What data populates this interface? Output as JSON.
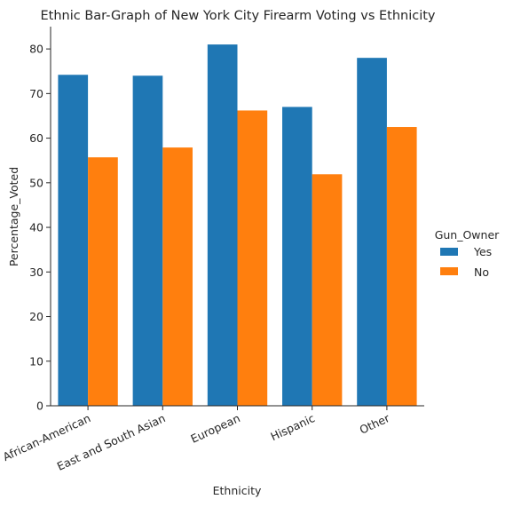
{
  "chart_data": {
    "type": "bar",
    "title": "Ethnic Bar-Graph of New York City Firearm Voting vs Ethnicity",
    "xlabel": "Ethnicity",
    "ylabel": "Percentage_Voted",
    "categories": [
      "African-American",
      "East and South Asian",
      "European",
      "Hispanic",
      "Other"
    ],
    "series": [
      {
        "name": "Yes",
        "color": "#1f77b4",
        "values": [
          74.2,
          74.0,
          81.0,
          67.0,
          78.0
        ]
      },
      {
        "name": "No",
        "color": "#ff7f0e",
        "values": [
          55.7,
          57.9,
          66.2,
          51.9,
          62.5
        ]
      }
    ],
    "ylim": [
      0,
      85
    ],
    "yticks": [
      0,
      10,
      20,
      30,
      40,
      50,
      60,
      70,
      80
    ],
    "legend": {
      "title": "Gun_Owner",
      "placement": "right"
    },
    "grid": false
  }
}
